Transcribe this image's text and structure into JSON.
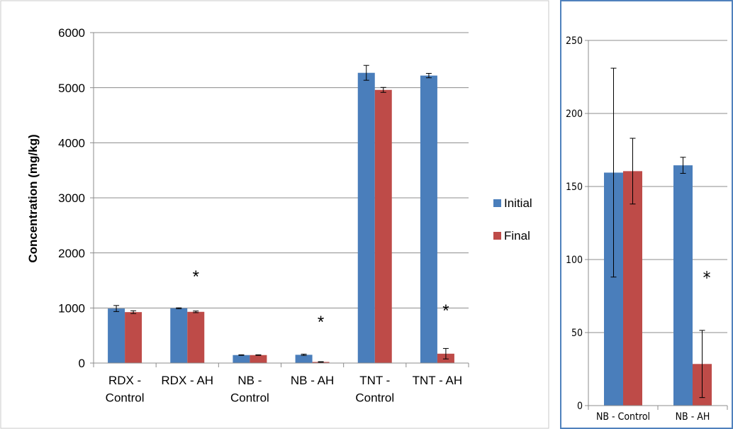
{
  "chart_data": [
    {
      "type": "bar",
      "categories": [
        [
          "RDX -",
          "Control"
        ],
        [
          "RDX - AH"
        ],
        [
          "NB -",
          "Control"
        ],
        [
          "NB - AH"
        ],
        [
          "TNT -",
          "Control"
        ],
        [
          "TNT - AH"
        ]
      ],
      "series": [
        {
          "name": "Initial",
          "color": "#4a7ebb",
          "values": [
            990,
            995,
            145,
            150,
            5270,
            5220
          ],
          "errors": [
            55,
            8,
            5,
            12,
            135,
            40
          ]
        },
        {
          "name": "Final",
          "color": "#be4b48",
          "values": [
            925,
            930,
            145,
            20,
            4960,
            170
          ],
          "errors": [
            25,
            15,
            5,
            5,
            45,
            95
          ]
        }
      ],
      "significance": [
        "",
        "*",
        "",
        "*",
        "",
        "*"
      ],
      "ylabel": "Concentration (mg/kg)",
      "ylim": [
        0,
        6000
      ],
      "yticks": [
        0,
        1000,
        2000,
        3000,
        4000,
        5000,
        6000
      ],
      "legend": "right",
      "grid": true
    },
    {
      "type": "bar",
      "categories": [
        [
          "NB - Control"
        ],
        [
          "NB - AH"
        ]
      ],
      "series": [
        {
          "name": "Initial",
          "color": "#4a7ebb",
          "values": [
            159.5,
            164.5
          ],
          "errors": [
            71.5,
            5.5
          ]
        },
        {
          "name": "Final",
          "color": "#be4b48",
          "values": [
            160.5,
            28.5
          ],
          "errors": [
            22.5,
            23
          ]
        }
      ],
      "significance": [
        "",
        "*"
      ],
      "ylim": [
        0,
        250
      ],
      "yticks": [
        0,
        50,
        100,
        150,
        200,
        250
      ],
      "grid": true
    }
  ]
}
